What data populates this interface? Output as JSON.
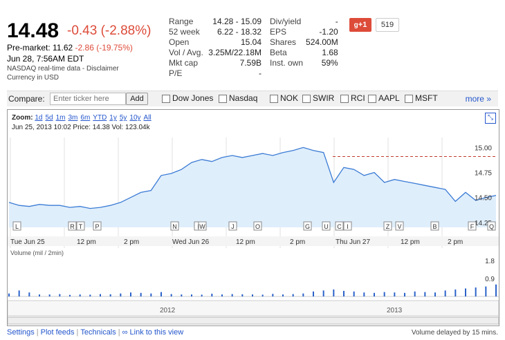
{
  "quote": {
    "price": "14.48",
    "change": "-0.43 (-2.88%)",
    "premarket_label": "Pre-market:",
    "premarket_price": "11.62",
    "premarket_change": "-2.86 (-19.75%)",
    "date": "Jun 28, 7:56AM EDT",
    "source": "NASDAQ real-time data - Disclaimer",
    "currency": "Currency in USD"
  },
  "stats_left": [
    {
      "k": "Range",
      "v": "14.28 - 15.09"
    },
    {
      "k": "52 week",
      "v": "6.22 - 18.32"
    },
    {
      "k": "Open",
      "v": "15.04"
    },
    {
      "k": "Vol / Avg.",
      "v": "3.25M/22.18M"
    },
    {
      "k": "Mkt cap",
      "v": "7.59B"
    },
    {
      "k": "P/E",
      "v": "-"
    }
  ],
  "stats_right": [
    {
      "k": "Div/yield",
      "v": "-"
    },
    {
      "k": "EPS",
      "v": "-1.20"
    },
    {
      "k": "Shares",
      "v": "524.00M"
    },
    {
      "k": "Beta",
      "v": "1.68"
    },
    {
      "k": "Inst. own",
      "v": "59%"
    }
  ],
  "social": {
    "plus_label": "+1",
    "count": "519"
  },
  "compare": {
    "label": "Compare:",
    "placeholder": "Enter ticker here",
    "add_label": "Add",
    "items": [
      "Dow Jones",
      "Nasdaq",
      "NOK",
      "SWIR",
      "RCI",
      "AAPL",
      "MSFT"
    ],
    "more": "more »"
  },
  "chart": {
    "zoom_label": "Zoom:",
    "zoom_options": [
      "1d",
      "5d",
      "1m",
      "3m",
      "6m",
      "YTD",
      "1y",
      "5y",
      "10y",
      "All"
    ],
    "info": "Jun 25, 2013 10:02 Price: 14.38 Vol: 123.04k",
    "y_ticks": [
      "15.00",
      "14.75",
      "14.50",
      "14.25"
    ],
    "x_ticks": [
      "Tue Jun 25",
      "12 pm",
      "2 pm",
      "Wed Jun 26",
      "12 pm",
      "2 pm",
      "Thu Jun 27",
      "12 pm",
      "2 pm"
    ],
    "volume_label": "Volume (mil / 2min)",
    "vol_ticks": [
      "1.8",
      "0.9"
    ],
    "nav_years": [
      "2012",
      "2013"
    ],
    "markers": [
      "L",
      "R",
      "T",
      "P",
      "N",
      "I",
      "W",
      "J",
      "O",
      "G",
      "U",
      "C",
      "I",
      "Z",
      "V",
      "B",
      "F",
      "Q"
    ]
  },
  "chart_data": {
    "type": "line",
    "title": "",
    "ylabel": "",
    "ylim": [
      14.2,
      15.1
    ],
    "reference_line": 14.91,
    "series": [
      {
        "values": [
          14.45,
          14.42,
          14.41,
          14.43,
          14.42,
          14.42,
          14.4,
          14.41,
          14.39,
          14.4,
          14.42,
          14.45,
          14.5,
          14.55,
          14.57,
          14.72,
          14.74,
          14.78,
          14.85,
          14.88,
          14.86,
          14.9,
          14.92,
          14.9,
          14.92,
          14.94,
          14.92,
          14.95,
          14.97,
          15.0,
          14.97,
          14.95,
          14.65,
          14.8,
          14.78,
          14.72,
          14.75,
          14.65,
          14.68,
          14.66,
          14.64,
          14.62,
          14.6,
          14.58,
          14.46,
          14.55,
          14.47,
          14.5,
          14.52
        ]
      }
    ],
    "volume_ylim": [
      0,
      1.8
    ],
    "volume": [
      0.15,
      0.3,
      0.2,
      0.1,
      0.1,
      0.12,
      0.08,
      0.1,
      0.09,
      0.12,
      0.11,
      0.15,
      0.2,
      0.18,
      0.15,
      0.22,
      0.12,
      0.1,
      0.1,
      0.09,
      0.14,
      0.1,
      0.12,
      0.11,
      0.1,
      0.09,
      0.13,
      0.1,
      0.12,
      0.15,
      0.25,
      0.3,
      0.35,
      0.28,
      0.25,
      0.2,
      0.18,
      0.22,
      0.2,
      0.18,
      0.25,
      0.22,
      0.2,
      0.3,
      0.35,
      0.4,
      0.45,
      0.5,
      0.6
    ]
  }
}
